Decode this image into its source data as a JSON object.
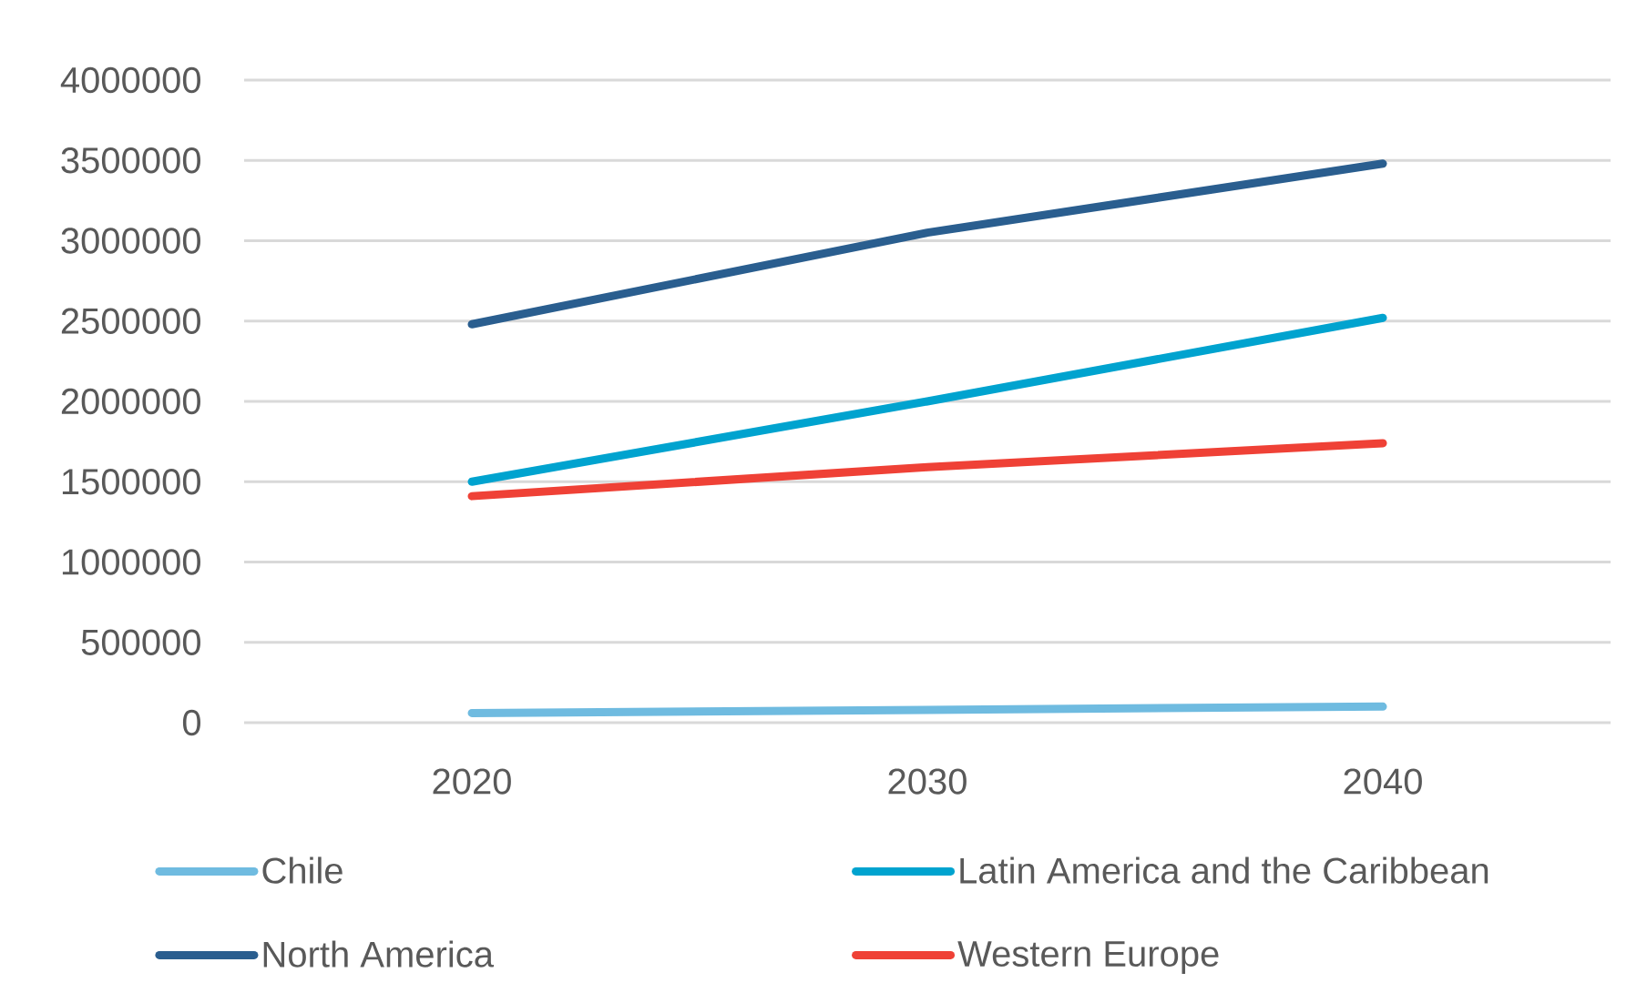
{
  "chart_data": {
    "type": "line",
    "categories": [
      "2020",
      "2030",
      "2040"
    ],
    "series": [
      {
        "name": "Chile",
        "color": "#6fbbe0",
        "values": [
          60000,
          80000,
          100000
        ]
      },
      {
        "name": "Latin America and the Caribbean",
        "color": "#00a3cf",
        "values": [
          1500000,
          2000000,
          2520000
        ]
      },
      {
        "name": "North America",
        "color": "#2a5e8f",
        "values": [
          2480000,
          3050000,
          3480000
        ]
      },
      {
        "name": "Western Europe",
        "color": "#ef4136",
        "values": [
          1410000,
          1590000,
          1740000
        ]
      }
    ],
    "ylim": [
      0,
      4000000
    ],
    "yticks": [
      0,
      500000,
      1000000,
      1500000,
      2000000,
      2500000,
      3000000,
      3500000,
      4000000
    ],
    "grid": "y",
    "legend": "bottom",
    "line_style": "solid"
  }
}
